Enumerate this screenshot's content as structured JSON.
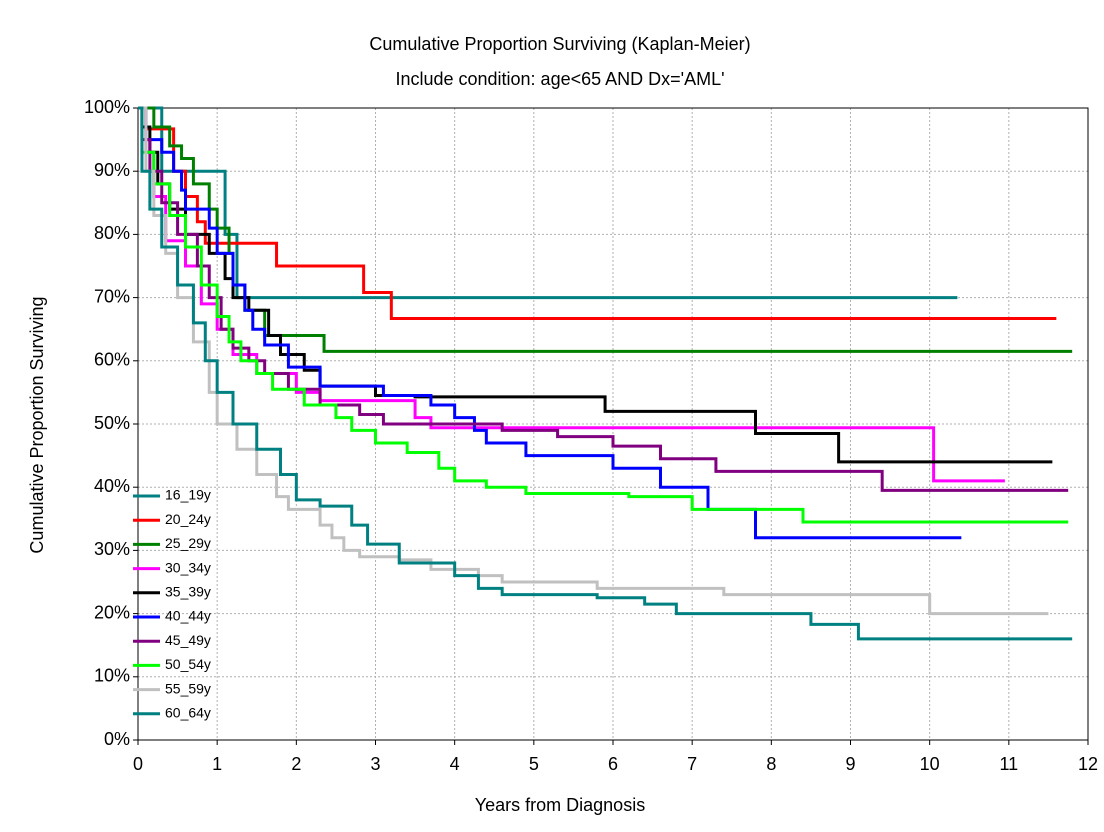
{
  "chart_data": {
    "type": "step",
    "title": "Cumulative Proportion Surviving (Kaplan-Meier)",
    "subtitle": "Include condition: age<65 AND Dx='AML'",
    "x_label": "Years from Diagnosis",
    "y_label": "Cumulative Proportion Surviving",
    "xlim": [
      0,
      12
    ],
    "ylim": [
      0,
      100
    ],
    "xticks": [
      0,
      1,
      2,
      3,
      4,
      5,
      6,
      7,
      8,
      9,
      10,
      11,
      12
    ],
    "yticks": [
      {
        "value": 0,
        "label": "0%"
      },
      {
        "value": 10,
        "label": "10%"
      },
      {
        "value": 20,
        "label": "20%"
      },
      {
        "value": 30,
        "label": "30%"
      },
      {
        "value": 40,
        "label": "40%"
      },
      {
        "value": 50,
        "label": "50%"
      },
      {
        "value": 60,
        "label": "60%"
      },
      {
        "value": 70,
        "label": "70%"
      },
      {
        "value": 80,
        "label": "80%"
      },
      {
        "value": 90,
        "label": "90%"
      },
      {
        "value": 100,
        "label": "100%"
      }
    ],
    "grid": true,
    "legend": "lower left",
    "series": [
      {
        "name": "16_19y",
        "color": "#008080",
        "x": [
          0,
          0.3,
          1.1,
          1.25,
          10.35
        ],
        "values": [
          100,
          90,
          80,
          70,
          70
        ]
      },
      {
        "name": "20_24y",
        "color": "#ff0000",
        "x": [
          0,
          0.1,
          0.45,
          0.6,
          0.75,
          0.85,
          1.75,
          2.85,
          3.2,
          11.6
        ],
        "values": [
          100,
          96.7,
          90,
          86,
          82,
          78.6,
          75,
          70.8,
          66.7,
          66.7
        ]
      },
      {
        "name": "25_29y",
        "color": "#008000",
        "x": [
          0,
          0.2,
          0.4,
          0.55,
          0.7,
          0.9,
          1.0,
          1.15,
          1.2,
          1.35,
          1.6,
          2.35,
          11.8
        ],
        "values": [
          100,
          97,
          94,
          92,
          88,
          84,
          81,
          77,
          72,
          68,
          64,
          61.5,
          61.5
        ]
      },
      {
        "name": "30_34y",
        "color": "#ff00ff",
        "x": [
          0,
          0.1,
          0.2,
          0.35,
          0.6,
          0.8,
          1.0,
          1.2,
          1.5,
          2.0,
          2.3,
          3.5,
          3.7,
          10.05,
          10.95
        ],
        "values": [
          100,
          93,
          86,
          79,
          75,
          69,
          65,
          61,
          58,
          55,
          53.7,
          51,
          49.4,
          41,
          41
        ]
      },
      {
        "name": "35_39y",
        "color": "#000000",
        "x": [
          0,
          0.05,
          0.15,
          0.25,
          0.4,
          0.6,
          0.9,
          1.1,
          1.2,
          1.4,
          1.65,
          1.8,
          2.1,
          2.3,
          3.0,
          3.5,
          5.9,
          7.8,
          8.85,
          11.55
        ],
        "values": [
          100,
          97,
          93,
          88,
          84,
          80,
          77,
          73,
          70,
          68,
          64,
          61,
          58.5,
          56,
          54.5,
          54.3,
          52,
          48.5,
          44,
          44
        ]
      },
      {
        "name": "40_44y",
        "color": "#0000ff",
        "x": [
          0,
          0.1,
          0.3,
          0.45,
          0.55,
          0.6,
          0.9,
          1.0,
          1.2,
          1.35,
          1.45,
          1.6,
          1.9,
          2.3,
          3.1,
          3.7,
          4.0,
          4.25,
          4.4,
          4.9,
          6.0,
          6.6,
          7.2,
          7.8,
          10.4
        ],
        "values": [
          100,
          95,
          93,
          90,
          87,
          84,
          81,
          77,
          72,
          68,
          65,
          62.5,
          59,
          56,
          54.5,
          53,
          51,
          49,
          47,
          45,
          43,
          40,
          36.5,
          32,
          32
        ]
      },
      {
        "name": "45_49y",
        "color": "#800080",
        "x": [
          0,
          0.05,
          0.15,
          0.3,
          0.5,
          0.75,
          0.9,
          1.05,
          1.2,
          1.4,
          1.6,
          1.9,
          2.3,
          2.8,
          3.1,
          4.6,
          5.3,
          6.0,
          6.6,
          7.3,
          9.4,
          11.75
        ],
        "values": [
          100,
          95,
          90,
          85,
          80,
          75,
          70,
          65,
          62,
          60,
          58,
          55.5,
          53,
          51.5,
          50,
          49,
          48,
          46.5,
          44.5,
          42.5,
          39.5,
          39.5
        ]
      },
      {
        "name": "50_54y",
        "color": "#00ff00",
        "x": [
          0,
          0.05,
          0.2,
          0.4,
          0.6,
          0.8,
          1.0,
          1.15,
          1.3,
          1.5,
          1.7,
          2.1,
          2.5,
          2.7,
          3.0,
          3.4,
          3.8,
          4.0,
          4.4,
          4.9,
          6.2,
          7.0,
          8.4,
          11.75
        ],
        "values": [
          100,
          93,
          88,
          83,
          78,
          72,
          67,
          63,
          60,
          58,
          55.5,
          53,
          51,
          49,
          47,
          45.5,
          43,
          41,
          40,
          39,
          38.5,
          36.5,
          34.5,
          34.5
        ]
      },
      {
        "name": "55_59y",
        "color": "#c0c0c0",
        "x": [
          0,
          0.1,
          0.2,
          0.35,
          0.5,
          0.7,
          0.9,
          1.0,
          1.25,
          1.5,
          1.75,
          1.9,
          2.3,
          2.45,
          2.6,
          2.8,
          3.3,
          3.7,
          4.3,
          4.6,
          5.8,
          7.4,
          10.0,
          11.5
        ],
        "values": [
          100,
          90,
          83,
          77,
          70,
          63,
          55,
          50,
          46,
          42,
          38.5,
          36.5,
          34,
          32,
          30,
          29,
          28.5,
          27,
          26,
          25,
          24,
          23,
          20,
          20
        ]
      },
      {
        "name": "60_64y",
        "color": "#008080",
        "x": [
          0,
          0.05,
          0.15,
          0.3,
          0.5,
          0.7,
          0.85,
          1.0,
          1.2,
          1.5,
          1.8,
          2.0,
          2.3,
          2.7,
          2.9,
          3.3,
          4.0,
          4.3,
          4.6,
          5.8,
          6.4,
          6.8,
          8.5,
          9.1,
          11.8
        ],
        "values": [
          100,
          90,
          84,
          78,
          72,
          66,
          60,
          55,
          50,
          46,
          42,
          38,
          37,
          34,
          31,
          28,
          26,
          24,
          23,
          22.5,
          21.5,
          20,
          18.3,
          16,
          16
        ]
      }
    ]
  }
}
